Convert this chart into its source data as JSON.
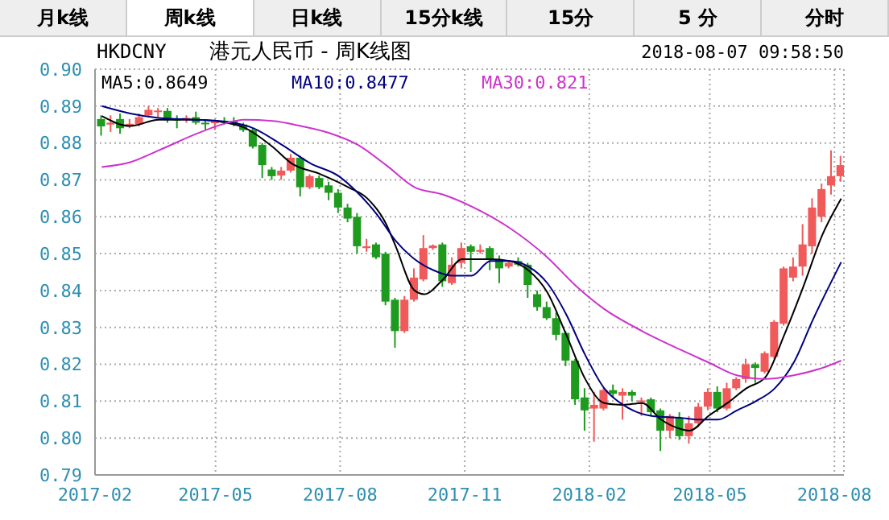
{
  "chart_data": {
    "type": "candlestick",
    "title": "港元人民币 - 周K线图",
    "subtitle": "HKDCNY",
    "annotations": [
      "2018-08-07 09:58:50",
      "月k线",
      "周k线",
      "日k线",
      "15分k线",
      "15分",
      "5 分",
      "分时"
    ],
    "x": [
      "2017-02-06",
      "2017-02-13",
      "2017-02-20",
      "2017-02-27",
      "2017-03-06",
      "2017-03-13",
      "2017-03-20",
      "2017-03-27",
      "2017-04-03",
      "2017-04-10",
      "2017-04-17",
      "2017-04-24",
      "2017-05-01",
      "2017-05-08",
      "2017-05-15",
      "2017-05-22",
      "2017-05-29",
      "2017-06-05",
      "2017-06-12",
      "2017-06-19",
      "2017-06-26",
      "2017-07-03",
      "2017-07-10",
      "2017-07-17",
      "2017-07-24",
      "2017-07-31",
      "2017-08-07",
      "2017-08-14",
      "2017-08-21",
      "2017-08-28",
      "2017-09-04",
      "2017-09-11",
      "2017-09-18",
      "2017-09-25",
      "2017-10-02",
      "2017-10-09",
      "2017-10-16",
      "2017-10-23",
      "2017-10-30",
      "2017-11-06",
      "2017-11-13",
      "2017-11-20",
      "2017-11-27",
      "2017-12-04",
      "2017-12-11",
      "2017-12-18",
      "2017-12-25",
      "2018-01-01",
      "2018-01-08",
      "2018-01-15",
      "2018-01-22",
      "2018-01-29",
      "2018-02-05",
      "2018-02-12",
      "2018-02-19",
      "2018-02-26",
      "2018-03-05",
      "2018-03-12",
      "2018-03-19",
      "2018-03-26",
      "2018-04-02",
      "2018-04-09",
      "2018-04-16",
      "2018-04-23",
      "2018-04-30",
      "2018-05-07",
      "2018-05-14",
      "2018-05-21",
      "2018-05-28",
      "2018-06-04",
      "2018-06-11",
      "2018-06-18",
      "2018-06-25",
      "2018-07-02",
      "2018-07-09",
      "2018-07-16",
      "2018-07-23",
      "2018-07-30",
      "2018-08-06"
    ],
    "ohlc": [
      [
        0.8865,
        0.8875,
        0.882,
        0.8845
      ],
      [
        0.885,
        0.8875,
        0.883,
        0.8855
      ],
      [
        0.8865,
        0.888,
        0.8825,
        0.884
      ],
      [
        0.8845,
        0.8865,
        0.884,
        0.8852
      ],
      [
        0.885,
        0.888,
        0.8845,
        0.887
      ],
      [
        0.8875,
        0.89,
        0.887,
        0.889
      ],
      [
        0.8885,
        0.8895,
        0.887,
        0.8888
      ],
      [
        0.8887,
        0.8895,
        0.8855,
        0.8862
      ],
      [
        0.8865,
        0.8875,
        0.884,
        0.8863
      ],
      [
        0.8862,
        0.8875,
        0.8855,
        0.8868
      ],
      [
        0.887,
        0.8885,
        0.885,
        0.8855
      ],
      [
        0.8855,
        0.8862,
        0.8835,
        0.8852
      ],
      [
        0.8855,
        0.8865,
        0.8835,
        0.8858
      ],
      [
        0.886,
        0.887,
        0.885,
        0.8855
      ],
      [
        0.886,
        0.887,
        0.8845,
        0.885
      ],
      [
        0.885,
        0.8855,
        0.883,
        0.8835
      ],
      [
        0.8835,
        0.884,
        0.8785,
        0.879
      ],
      [
        0.8795,
        0.88,
        0.8705,
        0.874
      ],
      [
        0.8728,
        0.8735,
        0.87,
        0.871
      ],
      [
        0.8712,
        0.8735,
        0.87,
        0.8725
      ],
      [
        0.8725,
        0.877,
        0.872,
        0.876
      ],
      [
        0.876,
        0.8765,
        0.8655,
        0.868
      ],
      [
        0.868,
        0.8715,
        0.8675,
        0.871
      ],
      [
        0.8705,
        0.8712,
        0.8675,
        0.868
      ],
      [
        0.8685,
        0.8695,
        0.8645,
        0.8665
      ],
      [
        0.8665,
        0.8675,
        0.861,
        0.8625
      ],
      [
        0.8625,
        0.8635,
        0.8585,
        0.8595
      ],
      [
        0.86,
        0.861,
        0.85,
        0.852
      ],
      [
        0.8515,
        0.854,
        0.8505,
        0.852
      ],
      [
        0.8525,
        0.853,
        0.8485,
        0.849
      ],
      [
        0.85,
        0.8505,
        0.836,
        0.837
      ],
      [
        0.8375,
        0.838,
        0.8245,
        0.829
      ],
      [
        0.829,
        0.8385,
        0.8285,
        0.8375
      ],
      [
        0.8375,
        0.846,
        0.837,
        0.8435
      ],
      [
        0.843,
        0.855,
        0.8425,
        0.8515
      ],
      [
        0.8515,
        0.8525,
        0.851,
        0.8522
      ],
      [
        0.8525,
        0.853,
        0.841,
        0.8425
      ],
      [
        0.842,
        0.849,
        0.8415,
        0.847
      ],
      [
        0.8475,
        0.853,
        0.846,
        0.8515
      ],
      [
        0.852,
        0.8525,
        0.845,
        0.8505
      ],
      [
        0.8505,
        0.8525,
        0.85,
        0.851
      ],
      [
        0.8515,
        0.852,
        0.8455,
        0.8485
      ],
      [
        0.8485,
        0.8495,
        0.842,
        0.846
      ],
      [
        0.8465,
        0.848,
        0.846,
        0.8475
      ],
      [
        0.848,
        0.849,
        0.8465,
        0.847
      ],
      [
        0.847,
        0.8475,
        0.838,
        0.8415
      ],
      [
        0.839,
        0.84,
        0.8345,
        0.8355
      ],
      [
        0.8355,
        0.837,
        0.832,
        0.8325
      ],
      [
        0.8325,
        0.834,
        0.8265,
        0.828
      ],
      [
        0.8285,
        0.829,
        0.8195,
        0.821
      ],
      [
        0.821,
        0.8215,
        0.809,
        0.8105
      ],
      [
        0.811,
        0.8135,
        0.802,
        0.8075
      ],
      [
        0.808,
        0.8125,
        0.799,
        0.809
      ],
      [
        0.808,
        0.8135,
        0.8075,
        0.813
      ],
      [
        0.813,
        0.8145,
        0.811,
        0.812
      ],
      [
        0.8115,
        0.8135,
        0.805,
        0.8125
      ],
      [
        0.8125,
        0.813,
        0.81,
        0.8115
      ],
      [
        0.81,
        0.811,
        0.806,
        0.8102
      ],
      [
        0.8105,
        0.811,
        0.806,
        0.807
      ],
      [
        0.8075,
        0.808,
        0.7965,
        0.802
      ],
      [
        0.802,
        0.8065,
        0.8,
        0.806
      ],
      [
        0.8055,
        0.807,
        0.7995,
        0.8005
      ],
      [
        0.8005,
        0.806,
        0.7985,
        0.804
      ],
      [
        0.804,
        0.8095,
        0.803,
        0.8085
      ],
      [
        0.8085,
        0.8135,
        0.8075,
        0.8125
      ],
      [
        0.8125,
        0.814,
        0.807,
        0.808
      ],
      [
        0.808,
        0.815,
        0.8075,
        0.8135
      ],
      [
        0.8135,
        0.8165,
        0.813,
        0.816
      ],
      [
        0.816,
        0.8215,
        0.815,
        0.82
      ],
      [
        0.82,
        0.8205,
        0.815,
        0.819
      ],
      [
        0.818,
        0.8235,
        0.8175,
        0.823
      ],
      [
        0.822,
        0.832,
        0.8215,
        0.8315
      ],
      [
        0.831,
        0.8465,
        0.8305,
        0.846
      ],
      [
        0.8435,
        0.849,
        0.8425,
        0.8465
      ],
      [
        0.8465,
        0.858,
        0.844,
        0.8525
      ],
      [
        0.852,
        0.865,
        0.85,
        0.8625
      ],
      [
        0.86,
        0.869,
        0.8585,
        0.8675
      ],
      [
        0.8685,
        0.878,
        0.866,
        0.871
      ],
      [
        0.871,
        0.8765,
        0.8695,
        0.874
      ]
    ],
    "colors": [
      "#1e9b1e",
      "#f05a5a",
      "#1e9b1e",
      "#f05a5a",
      "#f05a5a",
      "#f05a5a",
      "#f05a5a",
      "#1e9b1e",
      "#1e9b1e",
      "#f05a5a",
      "#1e9b1e",
      "#1e9b1e",
      "#f05a5a",
      "#1e9b1e",
      "#1e9b1e",
      "#1e9b1e",
      "#1e9b1e",
      "#1e9b1e",
      "#1e9b1e",
      "#f05a5a",
      "#f05a5a",
      "#1e9b1e",
      "#f05a5a",
      "#1e9b1e",
      "#1e9b1e",
      "#1e9b1e",
      "#1e9b1e",
      "#1e9b1e",
      "#f05a5a",
      "#1e9b1e",
      "#1e9b1e",
      "#1e9b1e",
      "#f05a5a",
      "#f05a5a",
      "#f05a5a",
      "#f05a5a",
      "#1e9b1e",
      "#f05a5a",
      "#f05a5a",
      "#1e9b1e",
      "#f05a5a",
      "#1e9b1e",
      "#1e9b1e",
      "#f05a5a",
      "#1e9b1e",
      "#1e9b1e",
      "#1e9b1e",
      "#1e9b1e",
      "#1e9b1e",
      "#1e9b1e",
      "#1e9b1e",
      "#1e9b1e",
      "#f05a5a",
      "#f05a5a",
      "#1e9b1e",
      "#f05a5a",
      "#1e9b1e",
      "#f05a5a",
      "#1e9b1e",
      "#1e9b1e",
      "#f05a5a",
      "#1e9b1e",
      "#f05a5a",
      "#f05a5a",
      "#f05a5a",
      "#1e9b1e",
      "#f05a5a",
      "#f05a5a",
      "#f05a5a",
      "#1e9b1e",
      "#f05a5a",
      "#f05a5a",
      "#f05a5a",
      "#f05a5a",
      "#f05a5a",
      "#f05a5a",
      "#f05a5a",
      "#f05a5a",
      "#f05a5a"
    ],
    "series": [
      {
        "type": "line",
        "name": "MA5:0.8649",
        "color": "#000000",
        "x": [
          "2017-02-06",
          "2017-02-27",
          "2017-03-20",
          "2017-04-17",
          "2017-05-08",
          "2017-05-22",
          "2017-06-12",
          "2017-06-26",
          "2017-07-17",
          "2017-08-07",
          "2017-08-21",
          "2017-09-04",
          "2017-09-11",
          "2017-09-25",
          "2017-10-02",
          "2017-10-16",
          "2017-10-30",
          "2017-11-20",
          "2017-12-04",
          "2017-12-18",
          "2018-01-01",
          "2018-01-15",
          "2018-01-29",
          "2018-02-12",
          "2018-02-26",
          "2018-03-12",
          "2018-03-26",
          "2018-04-09",
          "2018-04-16",
          "2018-04-30",
          "2018-05-14",
          "2018-05-28",
          "2018-06-11",
          "2018-06-25",
          "2018-07-09",
          "2018-07-23",
          "2018-08-06"
        ],
        "values": [
          0.8873,
          0.8846,
          0.8863,
          0.8863,
          0.8856,
          0.8842,
          0.879,
          0.8745,
          0.8716,
          0.868,
          0.865,
          0.858,
          0.852,
          0.84,
          0.839,
          0.843,
          0.8485,
          0.8485,
          0.848,
          0.8455,
          0.8395,
          0.828,
          0.816,
          0.8095,
          0.809,
          0.8095,
          0.805,
          0.8025,
          0.802,
          0.806,
          0.8095,
          0.8135,
          0.8165,
          0.828,
          0.841,
          0.855,
          0.8649
        ]
      },
      {
        "type": "line",
        "name": "MA10:0.8477",
        "color": "#000080",
        "x": [
          "2017-02-06",
          "2017-02-27",
          "2017-03-20",
          "2017-04-17",
          "2017-05-08",
          "2017-05-29",
          "2017-06-19",
          "2017-07-10",
          "2017-07-31",
          "2017-08-14",
          "2017-08-28",
          "2017-09-11",
          "2017-09-25",
          "2017-10-09",
          "2017-10-23",
          "2017-11-06",
          "2017-11-20",
          "2017-12-04",
          "2017-12-18",
          "2018-01-01",
          "2018-01-15",
          "2018-01-29",
          "2018-02-12",
          "2018-02-26",
          "2018-03-19",
          "2018-04-09",
          "2018-04-23",
          "2018-05-07",
          "2018-05-21",
          "2018-06-04",
          "2018-06-18",
          "2018-07-02",
          "2018-07-16",
          "2018-08-06"
        ],
        "values": [
          0.89,
          0.888,
          0.8868,
          0.8863,
          0.8858,
          0.884,
          0.8795,
          0.8745,
          0.871,
          0.8665,
          0.8607,
          0.8535,
          0.8485,
          0.8455,
          0.844,
          0.844,
          0.848,
          0.848,
          0.8465,
          0.842,
          0.8335,
          0.8225,
          0.8135,
          0.809,
          0.806,
          0.8055,
          0.805,
          0.805,
          0.8075,
          0.81,
          0.8135,
          0.8205,
          0.832,
          0.8477
        ]
      },
      {
        "type": "line",
        "name": "MA30:0.821",
        "color": "#cc33cc",
        "x": [
          "2017-02-06",
          "2017-02-27",
          "2017-03-20",
          "2017-04-17",
          "2017-05-08",
          "2017-05-22",
          "2017-06-12",
          "2017-07-03",
          "2017-07-24",
          "2017-08-14",
          "2017-09-04",
          "2017-09-25",
          "2017-10-16",
          "2017-11-13",
          "2017-12-04",
          "2018-01-01",
          "2018-01-22",
          "2018-02-12",
          "2018-03-12",
          "2018-04-09",
          "2018-04-30",
          "2018-05-21",
          "2018-06-11",
          "2018-07-02",
          "2018-07-23",
          "2018-08-06"
        ],
        "values": [
          0.8735,
          0.8748,
          0.878,
          0.8825,
          0.8853,
          0.8863,
          0.886,
          0.8846,
          0.8827,
          0.8795,
          0.874,
          0.868,
          0.866,
          0.8615,
          0.857,
          0.849,
          0.8413,
          0.835,
          0.829,
          0.824,
          0.8205,
          0.817,
          0.816,
          0.817,
          0.819,
          0.821
        ]
      }
    ],
    "xlim": [
      "2017-02-01",
      "2018-08-08"
    ],
    "xticks": [
      "2017-02",
      "2017-05",
      "2017-08",
      "2017-11",
      "2018-02",
      "2018-05",
      "2018-08"
    ],
    "ylim": [
      0.79,
      0.9
    ],
    "yticks": [
      {
        "value": 0.79,
        "label": "0.79"
      },
      {
        "value": 0.8,
        "label": "0.80"
      },
      {
        "value": 0.81,
        "label": "0.81"
      },
      {
        "value": 0.82,
        "label": "0.82"
      },
      {
        "value": 0.83,
        "label": "0.83"
      },
      {
        "value": 0.84,
        "label": "0.84"
      },
      {
        "value": 0.85,
        "label": "0.85"
      },
      {
        "value": 0.86,
        "label": "0.86"
      },
      {
        "value": 0.87,
        "label": "0.87"
      },
      {
        "value": 0.88,
        "label": "0.88"
      },
      {
        "value": 0.89,
        "label": "0.89"
      },
      {
        "value": 0.9,
        "label": "0.90"
      }
    ],
    "grid": true,
    "legend": "top left"
  }
}
